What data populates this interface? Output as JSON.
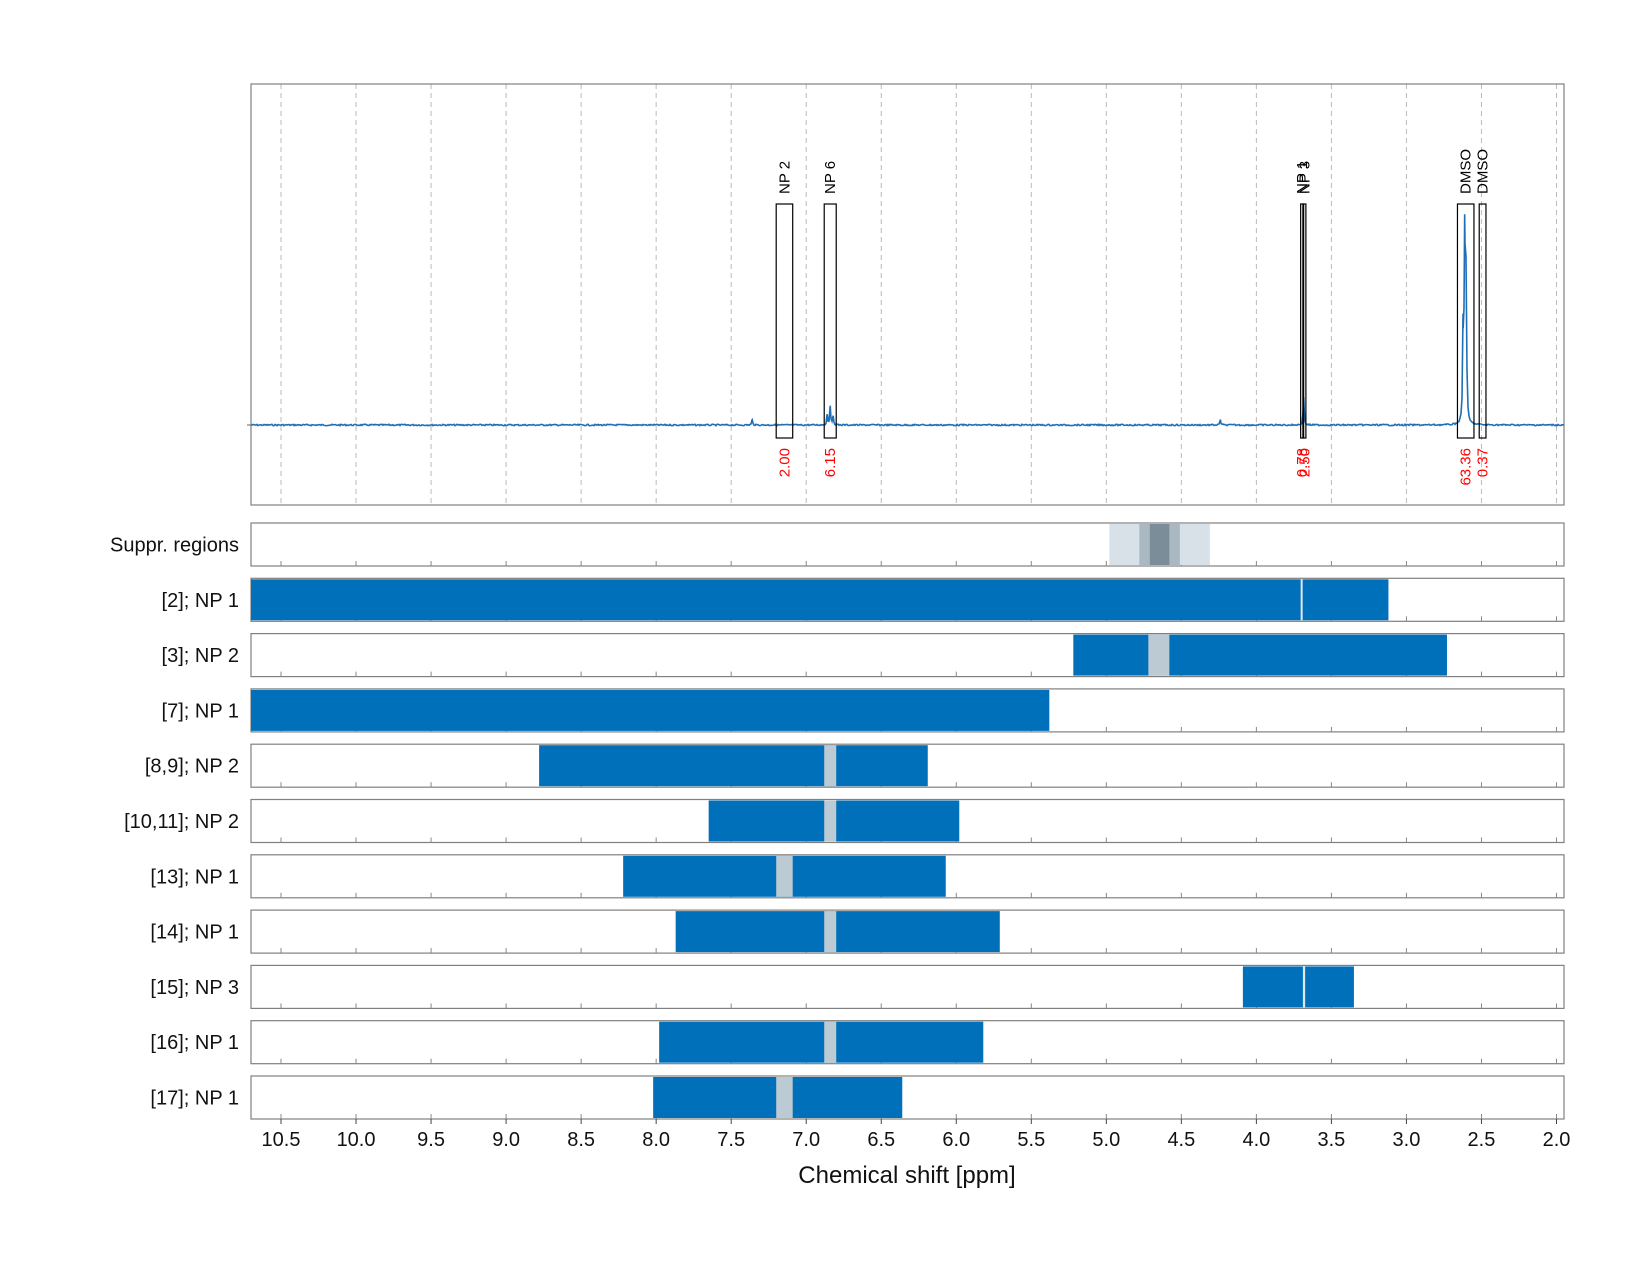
{
  "chart_data": {
    "type": "nmr-spectrum-with-region-bars",
    "xlabel": "Chemical shift [ppm]",
    "xlim": [
      10.7,
      1.95
    ],
    "x_ticks": [
      10.5,
      10.0,
      9.5,
      9.0,
      8.5,
      8.0,
      7.5,
      7.0,
      6.5,
      6.0,
      5.5,
      5.0,
      4.5,
      4.0,
      3.5,
      3.0,
      2.5,
      2.0
    ],
    "x_tick_labels": [
      "10.5",
      "10.0",
      "9.5",
      "9.0",
      "8.5",
      "8.0",
      "7.5",
      "7.0",
      "6.5",
      "6.0",
      "5.5",
      "5.0",
      "4.5",
      "4.0",
      "3.5",
      "3.0",
      "2.5",
      "2.0"
    ],
    "grid": true,
    "colors": {
      "spectrum": "#1f6fb5",
      "bar": "#0070bb",
      "integral_label": "#ff0000",
      "window_gap": "#bccad3",
      "suppr_light": "#d9e1e8",
      "suppr_mid": "#a9b8c3",
      "suppr_dark": "#7a8d99",
      "frame": "#808080",
      "grid": "#bbbbbb"
    },
    "spectrum": {
      "baseline": 0.0,
      "peaks": [
        {
          "ppm": 7.36,
          "height": 0.025
        },
        {
          "ppm": 6.86,
          "height": 0.05
        },
        {
          "ppm": 6.84,
          "height": 0.09
        },
        {
          "ppm": 6.82,
          "height": 0.04
        },
        {
          "ppm": 4.24,
          "height": 0.025
        },
        {
          "ppm": 3.685,
          "height": 0.13
        },
        {
          "ppm": 2.622,
          "height": 0.45
        },
        {
          "ppm": 2.612,
          "height": 0.98
        },
        {
          "ppm": 2.602,
          "height": 0.7
        }
      ]
    },
    "annotations": [
      {
        "label": "NP 2",
        "ppm_left": 7.2,
        "ppm_right": 7.09,
        "value": "2.00"
      },
      {
        "label": "NP 6",
        "ppm_left": 6.88,
        "ppm_right": 6.8,
        "value": "6.15"
      },
      {
        "label": "NP 1",
        "ppm_left": 3.705,
        "ppm_right": 3.69,
        "value": "0.78"
      },
      {
        "label": "NP 3",
        "ppm_left": 3.69,
        "ppm_right": 3.675,
        "value": "2.50"
      },
      {
        "label": "DMSO",
        "ppm_left": 2.66,
        "ppm_right": 2.55,
        "value": "63.36"
      },
      {
        "label": "DMSO",
        "ppm_left": 2.515,
        "ppm_right": 2.47,
        "value": "0.37"
      }
    ],
    "suppression": {
      "label": "Suppr. regions",
      "zones": [
        {
          "from": 4.98,
          "to": 4.31,
          "shade": "light"
        },
        {
          "from": 4.78,
          "to": 4.51,
          "shade": "mid"
        },
        {
          "from": 4.71,
          "to": 4.58,
          "shade": "dark"
        }
      ]
    },
    "rows": [
      {
        "label": "[2]; NP 1",
        "from": 10.7,
        "to": 3.12,
        "gap": [
          3.705,
          3.695
        ]
      },
      {
        "label": "[3]; NP 2",
        "from": 5.22,
        "to": 2.73,
        "gap": [
          4.72,
          4.58
        ]
      },
      {
        "label": "[7]; NP 1",
        "from": 10.7,
        "to": 5.38,
        "gap": null
      },
      {
        "label": "[8,9]; NP 2",
        "from": 8.78,
        "to": 6.19,
        "gap": [
          6.88,
          6.8
        ]
      },
      {
        "label": "[10,11]; NP 2",
        "from": 7.65,
        "to": 5.98,
        "gap": [
          6.88,
          6.8
        ]
      },
      {
        "label": "[13]; NP 1",
        "from": 8.22,
        "to": 6.07,
        "gap": [
          7.2,
          7.09
        ]
      },
      {
        "label": "[14]; NP 1",
        "from": 7.87,
        "to": 5.71,
        "gap": [
          6.88,
          6.8
        ]
      },
      {
        "label": "[15]; NP 3",
        "from": 4.09,
        "to": 3.35,
        "gap": [
          3.69,
          3.675
        ]
      },
      {
        "label": "[16]; NP 1",
        "from": 7.98,
        "to": 5.82,
        "gap": [
          6.88,
          6.8
        ]
      },
      {
        "label": "[17]; NP 1",
        "from": 8.02,
        "to": 6.36,
        "gap": [
          7.2,
          7.09
        ]
      }
    ]
  }
}
